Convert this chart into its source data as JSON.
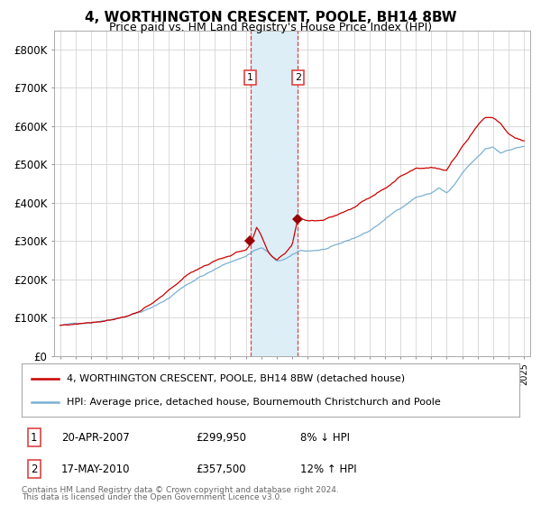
{
  "title": "4, WORTHINGTON CRESCENT, POOLE, BH14 8BW",
  "subtitle": "Price paid vs. HM Land Registry's House Price Index (HPI)",
  "legend_line1": "4, WORTHINGTON CRESCENT, POOLE, BH14 8BW (detached house)",
  "legend_line2": "HPI: Average price, detached house, Bournemouth Christchurch and Poole",
  "transaction1_date": "20-APR-2007",
  "transaction1_price": 299950,
  "transaction1_label": "1",
  "transaction1_hpi": "8% ↓ HPI",
  "transaction2_date": "17-MAY-2010",
  "transaction2_price": 357500,
  "transaction2_label": "2",
  "transaction2_hpi": "12% ↑ HPI",
  "footer_line1": "Contains HM Land Registry data © Crown copyright and database right 2024.",
  "footer_line2": "This data is licensed under the Open Government Licence v3.0.",
  "hpi_color": "#7ab0d4",
  "property_color": "#cc0000",
  "marker_color": "#990000",
  "vline_color": "#dd4444",
  "shade_color": "#ddeef7",
  "grid_color": "#cccccc",
  "background_color": "#ffffff",
  "ylim": [
    0,
    850000
  ],
  "yticks": [
    0,
    100000,
    200000,
    300000,
    400000,
    500000,
    600000,
    700000,
    800000
  ],
  "ytick_labels": [
    "£0",
    "£100K",
    "£200K",
    "£300K",
    "£400K",
    "£500K",
    "£600K",
    "£700K",
    "£800K"
  ],
  "hpi_waypoints_t": [
    1995.0,
    1996.0,
    1997.0,
    1998.0,
    1999.0,
    2000.0,
    2001.0,
    2002.0,
    2003.0,
    2004.0,
    2005.0,
    2006.0,
    2007.0,
    2007.5,
    2008.0,
    2008.5,
    2009.0,
    2009.5,
    2010.0,
    2010.5,
    2011.0,
    2012.0,
    2013.0,
    2014.0,
    2015.0,
    2016.0,
    2017.0,
    2018.0,
    2019.0,
    2019.5,
    2020.0,
    2020.5,
    2021.0,
    2021.5,
    2022.0,
    2022.5,
    2023.0,
    2023.5,
    2024.0,
    2024.5,
    2025.0
  ],
  "hpi_waypoints_v": [
    80000,
    84000,
    89000,
    97000,
    107000,
    119000,
    133000,
    156000,
    188000,
    213000,
    232000,
    252000,
    267000,
    282000,
    290000,
    277000,
    252000,
    258000,
    267000,
    278000,
    278000,
    282000,
    292000,
    308000,
    327000,
    357000,
    387000,
    417000,
    427000,
    442000,
    427000,
    448000,
    477000,
    498000,
    517000,
    537000,
    542000,
    527000,
    537000,
    542000,
    547000
  ],
  "prop_waypoints_t": [
    1995.0,
    1996.0,
    1997.0,
    1998.0,
    1999.0,
    2000.0,
    2001.0,
    2002.0,
    2003.0,
    2004.0,
    2005.0,
    2006.0,
    2007.0,
    2007.33,
    2007.7,
    2008.0,
    2008.5,
    2009.0,
    2009.5,
    2010.0,
    2010.37,
    2010.5,
    2011.0,
    2012.0,
    2013.0,
    2014.0,
    2015.0,
    2016.0,
    2017.0,
    2018.0,
    2019.0,
    2020.0,
    2020.5,
    2021.0,
    2021.5,
    2022.0,
    2022.5,
    2023.0,
    2023.5,
    2024.0,
    2024.5,
    2025.0
  ],
  "prop_waypoints_v": [
    80000,
    84000,
    91000,
    99000,
    109000,
    123000,
    143000,
    173000,
    208000,
    233000,
    253000,
    268000,
    283000,
    299950,
    340000,
    318000,
    268000,
    248000,
    263000,
    288000,
    357500,
    358000,
    353000,
    358000,
    373000,
    393000,
    418000,
    448000,
    478000,
    503000,
    508000,
    498000,
    528000,
    558000,
    588000,
    618000,
    638000,
    638000,
    623000,
    598000,
    588000,
    578000
  ]
}
